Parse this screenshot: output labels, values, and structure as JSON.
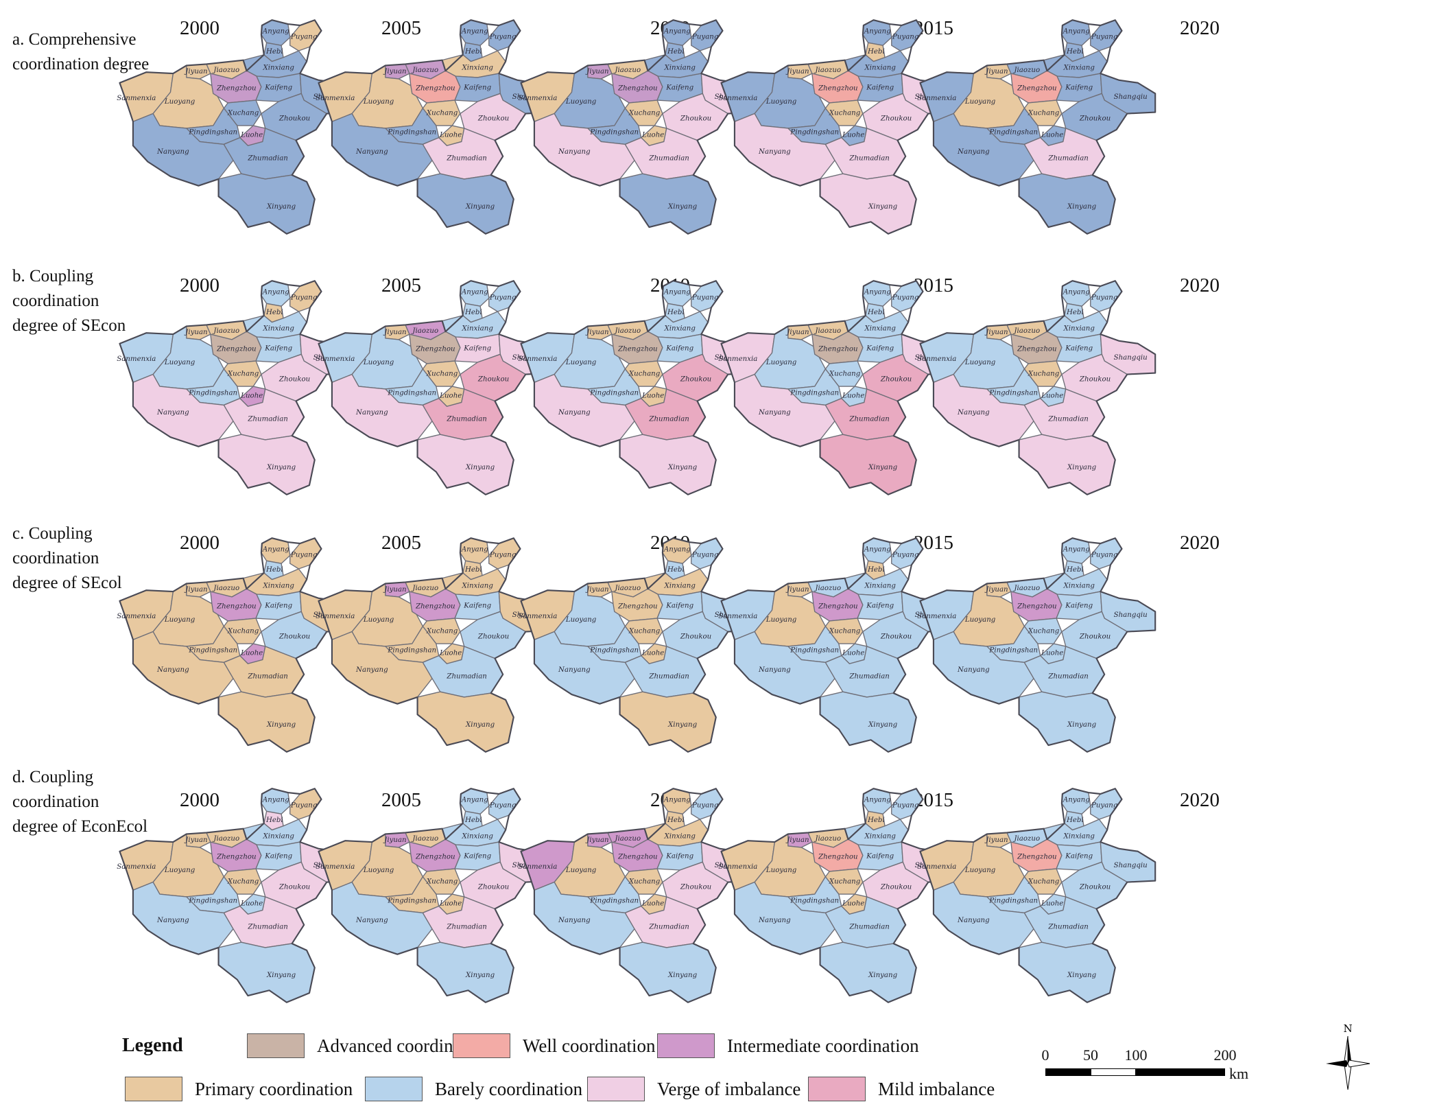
{
  "years": [
    "2000",
    "2005",
    "2010",
    "2015",
    "2020"
  ],
  "rows": [
    {
      "title": "a. Comprehensive\ncoordination degree",
      "maps": [
        {
          "Anyang": "B",
          "Puyang": "P",
          "Hebi": "B",
          "Xinxiang": "B",
          "Jiyuan": "P",
          "Jiaozuo": "P",
          "Zhengzhou": "I",
          "Kaifeng": "B",
          "Sanmenxia": "P",
          "Luoyang": "P",
          "Xuchang": "B",
          "Pingdingshan": "B",
          "Luohe": "I",
          "Shangqiu": "B",
          "Zhoukou": "B",
          "Nanyang": "B",
          "Zhumadian": "B",
          "Xinyang": "B"
        },
        {
          "Anyang": "B",
          "Puyang": "B",
          "Hebi": "B",
          "Xinxiang": "P",
          "Jiyuan": "I",
          "Jiaozuo": "I",
          "Zhengzhou": "W",
          "Kaifeng": "B",
          "Sanmenxia": "P",
          "Luoyang": "P",
          "Xuchang": "P",
          "Pingdingshan": "B",
          "Luohe": "P",
          "Shangqiu": "B",
          "Zhoukou": "V",
          "Nanyang": "B",
          "Zhumadian": "V",
          "Xinyang": "B"
        },
        {
          "Anyang": "B",
          "Puyang": "B",
          "Hebi": "B",
          "Xinxiang": "B",
          "Jiyuan": "I",
          "Jiaozuo": "P",
          "Zhengzhou": "I",
          "Kaifeng": "B",
          "Sanmenxia": "P",
          "Luoyang": "B",
          "Xuchang": "P",
          "Pingdingshan": "B",
          "Luohe": "P",
          "Shangqiu": "V",
          "Zhoukou": "V",
          "Nanyang": "V",
          "Zhumadian": "V",
          "Xinyang": "B"
        },
        {
          "Anyang": "B",
          "Puyang": "B",
          "Hebi": "P",
          "Xinxiang": "B",
          "Jiyuan": "P",
          "Jiaozuo": "P",
          "Zhengzhou": "W",
          "Kaifeng": "B",
          "Sanmenxia": "B",
          "Luoyang": "B",
          "Xuchang": "P",
          "Pingdingshan": "B",
          "Luohe": "B",
          "Shangqiu": "V",
          "Zhoukou": "V",
          "Nanyang": "V",
          "Zhumadian": "V",
          "Xinyang": "V"
        },
        {
          "Anyang": "B",
          "Puyang": "B",
          "Hebi": "B",
          "Xinxiang": "B",
          "Jiyuan": "P",
          "Jiaozuo": "B",
          "Zhengzhou": "W",
          "Kaifeng": "B",
          "Sanmenxia": "B",
          "Luoyang": "P",
          "Xuchang": "P",
          "Pingdingshan": "B",
          "Luohe": "B",
          "Shangqiu": "B",
          "Zhoukou": "B",
          "Nanyang": "B",
          "Zhumadian": "V",
          "Xinyang": "B"
        }
      ]
    },
    {
      "title": "b. Coupling\ncoordination\ndegree of SEcon",
      "maps": [
        {
          "Anyang": "B",
          "Puyang": "P",
          "Hebi": "P",
          "Xinxiang": "B",
          "Jiyuan": "P",
          "Jiaozuo": "P",
          "Zhengzhou": "A",
          "Kaifeng": "B",
          "Sanmenxia": "B",
          "Luoyang": "B",
          "Xuchang": "P",
          "Pingdingshan": "B",
          "Luohe": "I",
          "Shangqiu": "V",
          "Zhoukou": "V",
          "Nanyang": "V",
          "Zhumadian": "V",
          "Xinyang": "V"
        },
        {
          "Anyang": "B",
          "Puyang": "B",
          "Hebi": "B",
          "Xinxiang": "B",
          "Jiyuan": "P",
          "Jiaozuo": "I",
          "Zhengzhou": "A",
          "Kaifeng": "V",
          "Sanmenxia": "B",
          "Luoyang": "B",
          "Xuchang": "P",
          "Pingdingshan": "B",
          "Luohe": "P",
          "Shangqiu": "V",
          "Zhoukou": "M",
          "Nanyang": "V",
          "Zhumadian": "M",
          "Xinyang": "V"
        },
        {
          "Anyang": "B",
          "Puyang": "B",
          "Hebi": "B",
          "Xinxiang": "B",
          "Jiyuan": "P",
          "Jiaozuo": "P",
          "Zhengzhou": "A",
          "Kaifeng": "B",
          "Sanmenxia": "B",
          "Luoyang": "B",
          "Xuchang": "P",
          "Pingdingshan": "B",
          "Luohe": "P",
          "Shangqiu": "V",
          "Zhoukou": "M",
          "Nanyang": "V",
          "Zhumadian": "M",
          "Xinyang": "V"
        },
        {
          "Anyang": "B",
          "Puyang": "B",
          "Hebi": "B",
          "Xinxiang": "B",
          "Jiyuan": "P",
          "Jiaozuo": "P",
          "Zhengzhou": "A",
          "Kaifeng": "B",
          "Sanmenxia": "V",
          "Luoyang": "B",
          "Xuchang": "B",
          "Pingdingshan": "B",
          "Luohe": "B",
          "Shangqiu": "V",
          "Zhoukou": "M",
          "Nanyang": "V",
          "Zhumadian": "M",
          "Xinyang": "M"
        },
        {
          "Anyang": "B",
          "Puyang": "B",
          "Hebi": "B",
          "Xinxiang": "B",
          "Jiyuan": "P",
          "Jiaozuo": "P",
          "Zhengzhou": "A",
          "Kaifeng": "B",
          "Sanmenxia": "B",
          "Luoyang": "B",
          "Xuchang": "P",
          "Pingdingshan": "B",
          "Luohe": "B",
          "Shangqiu": "V",
          "Zhoukou": "V",
          "Nanyang": "V",
          "Zhumadian": "V",
          "Xinyang": "V"
        }
      ]
    },
    {
      "title": "c. Coupling\ncoordination\ndegree of SEcol",
      "maps": [
        {
          "Anyang": "P",
          "Puyang": "P",
          "Hebi": "B",
          "Xinxiang": "P",
          "Jiyuan": "P",
          "Jiaozuo": "P",
          "Zhengzhou": "I",
          "Kaifeng": "B",
          "Sanmenxia": "P",
          "Luoyang": "P",
          "Xuchang": "P",
          "Pingdingshan": "P",
          "Luohe": "I",
          "Shangqiu": "P",
          "Zhoukou": "B",
          "Nanyang": "P",
          "Zhumadian": "P",
          "Xinyang": "P"
        },
        {
          "Anyang": "P",
          "Puyang": "P",
          "Hebi": "P",
          "Xinxiang": "P",
          "Jiyuan": "I",
          "Jiaozuo": "P",
          "Zhengzhou": "I",
          "Kaifeng": "B",
          "Sanmenxia": "P",
          "Luoyang": "P",
          "Xuchang": "P",
          "Pingdingshan": "P",
          "Luohe": "P",
          "Shangqiu": "P",
          "Zhoukou": "B",
          "Nanyang": "P",
          "Zhumadian": "B",
          "Xinyang": "P"
        },
        {
          "Anyang": "P",
          "Puyang": "B",
          "Hebi": "B",
          "Xinxiang": "P",
          "Jiyuan": "P",
          "Jiaozuo": "P",
          "Zhengzhou": "P",
          "Kaifeng": "B",
          "Sanmenxia": "P",
          "Luoyang": "B",
          "Xuchang": "P",
          "Pingdingshan": "B",
          "Luohe": "P",
          "Shangqiu": "B",
          "Zhoukou": "B",
          "Nanyang": "B",
          "Zhumadian": "B",
          "Xinyang": "P"
        },
        {
          "Anyang": "B",
          "Puyang": "B",
          "Hebi": "P",
          "Xinxiang": "B",
          "Jiyuan": "P",
          "Jiaozuo": "B",
          "Zhengzhou": "I",
          "Kaifeng": "B",
          "Sanmenxia": "B",
          "Luoyang": "P",
          "Xuchang": "P",
          "Pingdingshan": "B",
          "Luohe": "B",
          "Shangqiu": "B",
          "Zhoukou": "B",
          "Nanyang": "B",
          "Zhumadian": "B",
          "Xinyang": "B"
        },
        {
          "Anyang": "B",
          "Puyang": "B",
          "Hebi": "B",
          "Xinxiang": "B",
          "Jiyuan": "P",
          "Jiaozuo": "B",
          "Zhengzhou": "I",
          "Kaifeng": "B",
          "Sanmenxia": "B",
          "Luoyang": "P",
          "Xuchang": "B",
          "Pingdingshan": "B",
          "Luohe": "B",
          "Shangqiu": "B",
          "Zhoukou": "B",
          "Nanyang": "B",
          "Zhumadian": "B",
          "Xinyang": "B"
        }
      ]
    },
    {
      "title": "d. Coupling\ncoordination\ndegree of EconEcol",
      "maps": [
        {
          "Anyang": "B",
          "Puyang": "P",
          "Hebi": "V",
          "Xinxiang": "B",
          "Jiyuan": "P",
          "Jiaozuo": "P",
          "Zhengzhou": "I",
          "Kaifeng": "B",
          "Sanmenxia": "P",
          "Luoyang": "P",
          "Xuchang": "P",
          "Pingdingshan": "B",
          "Luohe": "B",
          "Shangqiu": "V",
          "Zhoukou": "V",
          "Nanyang": "B",
          "Zhumadian": "V",
          "Xinyang": "B"
        },
        {
          "Anyang": "B",
          "Puyang": "B",
          "Hebi": "B",
          "Xinxiang": "B",
          "Jiyuan": "I",
          "Jiaozuo": "P",
          "Zhengzhou": "I",
          "Kaifeng": "B",
          "Sanmenxia": "P",
          "Luoyang": "P",
          "Xuchang": "P",
          "Pingdingshan": "P",
          "Luohe": "P",
          "Shangqiu": "V",
          "Zhoukou": "V",
          "Nanyang": "B",
          "Zhumadian": "V",
          "Xinyang": "B"
        },
        {
          "Anyang": "P",
          "Puyang": "B",
          "Hebi": "P",
          "Xinxiang": "P",
          "Jiyuan": "I",
          "Jiaozuo": "I",
          "Zhengzhou": "I",
          "Kaifeng": "B",
          "Sanmenxia": "I",
          "Luoyang": "P",
          "Xuchang": "P",
          "Pingdingshan": "B",
          "Luohe": "P",
          "Shangqiu": "V",
          "Zhoukou": "V",
          "Nanyang": "B",
          "Zhumadian": "V",
          "Xinyang": "B"
        },
        {
          "Anyang": "B",
          "Puyang": "B",
          "Hebi": "P",
          "Xinxiang": "B",
          "Jiyuan": "I",
          "Jiaozuo": "P",
          "Zhengzhou": "W",
          "Kaifeng": "B",
          "Sanmenxia": "P",
          "Luoyang": "P",
          "Xuchang": "P",
          "Pingdingshan": "B",
          "Luohe": "P",
          "Shangqiu": "V",
          "Zhoukou": "V",
          "Nanyang": "B",
          "Zhumadian": "B",
          "Xinyang": "B"
        },
        {
          "Anyang": "B",
          "Puyang": "B",
          "Hebi": "B",
          "Xinxiang": "B",
          "Jiyuan": "P",
          "Jiaozuo": "B",
          "Zhengzhou": "W",
          "Kaifeng": "B",
          "Sanmenxia": "P",
          "Luoyang": "P",
          "Xuchang": "P",
          "Pingdingshan": "B",
          "Luohe": "B",
          "Shangqiu": "B",
          "Zhoukou": "B",
          "Nanyang": "B",
          "Zhumadian": "B",
          "Xinyang": "B"
        }
      ]
    }
  ],
  "row_colors": {
    "a": {
      "B": "#93aed4",
      "P": "#e8c9a0",
      "I": "#c79bc9",
      "W": "#f2a9a4",
      "V": "#f0cfe4",
      "A": "#c9b3a6",
      "M": "#e9aac1"
    },
    "default": {
      "B": "#b6d3ec",
      "P": "#e8c9a0",
      "I": "#cf99cb",
      "W": "#f3aba6",
      "V": "#f0cfe4",
      "A": "#c9b3a6",
      "M": "#e9aac1"
    }
  },
  "legend": {
    "title": "Legend",
    "items": [
      {
        "code": "A",
        "label": "Advanced coordination",
        "color": "#c9b3a6"
      },
      {
        "code": "W",
        "label": "Well coordination",
        "color": "#f3aba6"
      },
      {
        "code": "I",
        "label": "Intermediate coordination",
        "color": "#cf99cb"
      },
      {
        "code": "P",
        "label": "Primary coordination",
        "color": "#e8c9a0"
      },
      {
        "code": "B",
        "label": "Barely coordination",
        "color": "#b6d3ec"
      },
      {
        "code": "V",
        "label": "Verge of imbalance",
        "color": "#f0cfe4"
      },
      {
        "code": "M",
        "label": "Mild imbalance",
        "color": "#e9aac1"
      }
    ]
  },
  "scale_bar": {
    "ticks": [
      "0",
      "50",
      "100",
      "200"
    ],
    "unit": "km"
  },
  "north_arrow": {
    "label": "N"
  }
}
